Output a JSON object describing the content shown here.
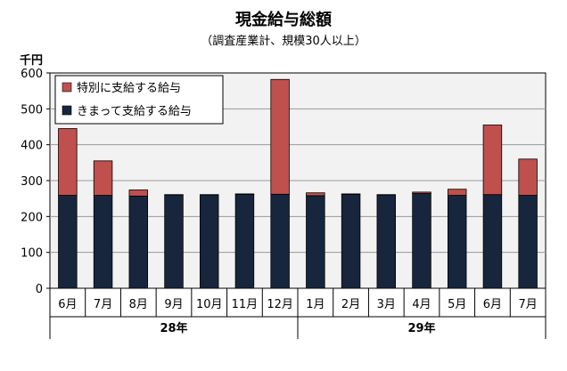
{
  "chart_data": {
    "type": "bar",
    "stacked": true,
    "title": "現金給与総額",
    "subtitle": "（調査産業計、規模30人以上）",
    "yunit": "千円",
    "ylim": [
      0,
      600
    ],
    "yticks": [
      0,
      100,
      200,
      300,
      400,
      500,
      600
    ],
    "grid": true,
    "legend_position": "top-left",
    "categories": [
      "6月",
      "7月",
      "8月",
      "9月",
      "10月",
      "11月",
      "12月",
      "1月",
      "2月",
      "3月",
      "4月",
      "5月",
      "6月",
      "7月"
    ],
    "groups": [
      {
        "label": "28年",
        "start": 0,
        "end": 6
      },
      {
        "label": "29年",
        "start": 7,
        "end": 13
      }
    ],
    "series": [
      {
        "name": "きまって支給する給与",
        "color": "#17263d",
        "values": [
          259,
          259,
          257,
          260,
          260,
          262,
          262,
          258,
          262,
          260,
          264,
          259,
          261,
          259
        ]
      },
      {
        "name": "特別に支給する給与",
        "color": "#c0504d",
        "values": [
          186,
          96,
          17,
          1,
          1,
          1,
          320,
          8,
          1,
          1,
          4,
          17,
          194,
          101
        ]
      }
    ]
  }
}
